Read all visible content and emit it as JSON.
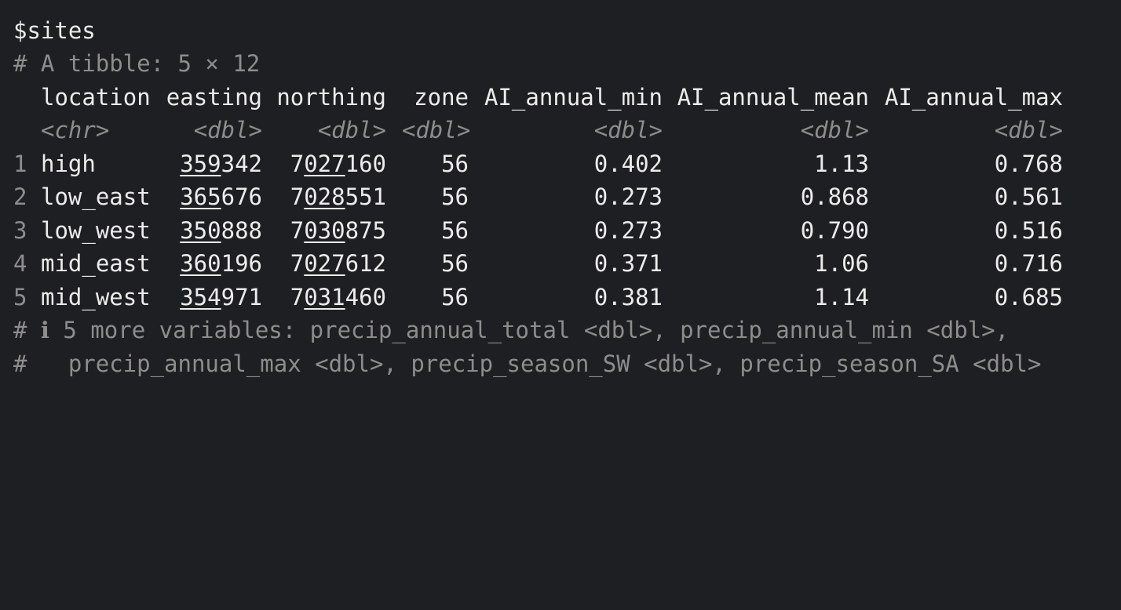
{
  "console": {
    "list_name": "$sites",
    "tibble_header": "# A tibble: 5 × 12",
    "columns": [
      {
        "name": "location",
        "type": "<chr>"
      },
      {
        "name": "easting",
        "type": "<dbl>"
      },
      {
        "name": "northing",
        "type": "<dbl>"
      },
      {
        "name": "zone",
        "type": "<dbl>"
      },
      {
        "name": "AI_annual_min",
        "type": "<dbl>"
      },
      {
        "name": "AI_annual_mean",
        "type": "<dbl>"
      },
      {
        "name": "AI_annual_max",
        "type": "<dbl>"
      }
    ],
    "rows": [
      {
        "idx": "1",
        "location": "high",
        "easting_u": "359",
        "easting_r": "342",
        "northing_a": "7",
        "northing_u": "027",
        "northing_r": "160",
        "zone": "56",
        "ai_min": "0.402",
        "ai_mean": "1.13",
        "ai_max": "0.768"
      },
      {
        "idx": "2",
        "location": "low_east",
        "easting_u": "365",
        "easting_r": "676",
        "northing_a": "7",
        "northing_u": "028",
        "northing_r": "551",
        "zone": "56",
        "ai_min": "0.273",
        "ai_mean": "0.868",
        "ai_max": "0.561"
      },
      {
        "idx": "3",
        "location": "low_west",
        "easting_u": "350",
        "easting_r": "888",
        "northing_a": "7",
        "northing_u": "030",
        "northing_r": "875",
        "zone": "56",
        "ai_min": "0.273",
        "ai_mean": "0.790",
        "ai_max": "0.516"
      },
      {
        "idx": "4",
        "location": "mid_east",
        "easting_u": "360",
        "easting_r": "196",
        "northing_a": "7",
        "northing_u": "027",
        "northing_r": "612",
        "zone": "56",
        "ai_min": "0.371",
        "ai_mean": "1.06",
        "ai_max": "0.716"
      },
      {
        "idx": "5",
        "location": "mid_west",
        "easting_u": "354",
        "easting_r": "971",
        "northing_a": "7",
        "northing_u": "031",
        "northing_r": "460",
        "zone": "56",
        "ai_min": "0.381",
        "ai_mean": "1.14",
        "ai_max": "0.685"
      }
    ],
    "footer_1": "# ℹ 5 more variables: precip_annual_total <dbl>, precip_annual_min <dbl>,",
    "footer_2": "#   precip_annual_max <dbl>, precip_season_SW <dbl>, precip_season_SA <dbl>"
  }
}
